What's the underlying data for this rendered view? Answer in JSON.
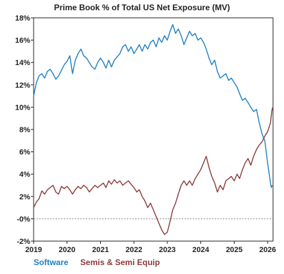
{
  "chart_data": {
    "type": "line",
    "title": "Prime Book % of Total US Net Exposure (MV)",
    "xlabel": "",
    "ylabel": "",
    "x_ticks": [
      "2019",
      "2020",
      "2021",
      "2022",
      "2023",
      "2024",
      "2025",
      "2026"
    ],
    "y_ticks": [
      "18%",
      "16%",
      "14%",
      "12%",
      "10%",
      "8%",
      "6%",
      "4%",
      "2%",
      "-0%",
      "-2%"
    ],
    "xlim": [
      "2019-01-01",
      "2026-03-01"
    ],
    "ylim": [
      -2,
      18
    ],
    "grid": false,
    "reference_line": {
      "y": 0,
      "style": "dashed"
    },
    "legend_position": "bottom-left",
    "series": [
      {
        "name": "Software",
        "color": "#1f7fc1",
        "points": [
          [
            "2019-01-01",
            11.0
          ],
          [
            "2019-02-01",
            12.2
          ],
          [
            "2019-03-01",
            12.8
          ],
          [
            "2019-04-01",
            13.0
          ],
          [
            "2019-05-01",
            12.6
          ],
          [
            "2019-06-01",
            13.2
          ],
          [
            "2019-07-01",
            13.4
          ],
          [
            "2019-08-01",
            13.0
          ],
          [
            "2019-09-01",
            12.5
          ],
          [
            "2019-10-01",
            12.8
          ],
          [
            "2019-11-01",
            13.3
          ],
          [
            "2019-12-01",
            13.8
          ],
          [
            "2020-01-01",
            14.1
          ],
          [
            "2020-02-01",
            14.6
          ],
          [
            "2020-03-01",
            13.0
          ],
          [
            "2020-04-01",
            14.2
          ],
          [
            "2020-05-01",
            14.8
          ],
          [
            "2020-06-01",
            15.2
          ],
          [
            "2020-07-01",
            14.6
          ],
          [
            "2020-08-01",
            14.4
          ],
          [
            "2020-09-01",
            14.0
          ],
          [
            "2020-10-01",
            13.6
          ],
          [
            "2020-11-01",
            13.4
          ],
          [
            "2020-12-01",
            14.0
          ],
          [
            "2021-01-01",
            14.4
          ],
          [
            "2021-02-01",
            14.0
          ],
          [
            "2021-03-01",
            13.5
          ],
          [
            "2021-04-01",
            14.2
          ],
          [
            "2021-05-01",
            13.6
          ],
          [
            "2021-06-01",
            14.2
          ],
          [
            "2021-07-01",
            14.5
          ],
          [
            "2021-08-01",
            14.8
          ],
          [
            "2021-09-01",
            15.4
          ],
          [
            "2021-10-01",
            15.6
          ],
          [
            "2021-11-01",
            15.0
          ],
          [
            "2021-12-01",
            15.4
          ],
          [
            "2022-01-01",
            14.8
          ],
          [
            "2022-02-01",
            15.2
          ],
          [
            "2022-03-01",
            15.6
          ],
          [
            "2022-04-01",
            15.0
          ],
          [
            "2022-05-01",
            15.6
          ],
          [
            "2022-06-01",
            15.2
          ],
          [
            "2022-07-01",
            15.8
          ],
          [
            "2022-08-01",
            16.0
          ],
          [
            "2022-09-01",
            15.4
          ],
          [
            "2022-10-01",
            16.2
          ],
          [
            "2022-11-01",
            15.8
          ],
          [
            "2022-12-01",
            16.4
          ],
          [
            "2023-01-01",
            16.0
          ],
          [
            "2023-02-01",
            16.8
          ],
          [
            "2023-03-01",
            17.4
          ],
          [
            "2023-04-01",
            16.6
          ],
          [
            "2023-05-01",
            17.0
          ],
          [
            "2023-06-01",
            16.4
          ],
          [
            "2023-07-01",
            15.6
          ],
          [
            "2023-08-01",
            16.2
          ],
          [
            "2023-09-01",
            16.8
          ],
          [
            "2023-10-01",
            16.4
          ],
          [
            "2023-11-01",
            16.6
          ],
          [
            "2023-12-01",
            16.0
          ],
          [
            "2024-01-01",
            16.2
          ],
          [
            "2024-02-01",
            15.8
          ],
          [
            "2024-03-01",
            15.2
          ],
          [
            "2024-04-01",
            14.4
          ],
          [
            "2024-05-01",
            13.8
          ],
          [
            "2024-06-01",
            14.2
          ],
          [
            "2024-07-01",
            13.2
          ],
          [
            "2024-08-01",
            12.6
          ],
          [
            "2024-09-01",
            12.8
          ],
          [
            "2024-10-01",
            13.0
          ],
          [
            "2024-11-01",
            12.4
          ],
          [
            "2024-12-01",
            12.6
          ],
          [
            "2025-01-01",
            12.2
          ],
          [
            "2025-02-01",
            11.8
          ],
          [
            "2025-03-01",
            11.2
          ],
          [
            "2025-04-01",
            10.6
          ],
          [
            "2025-05-01",
            10.8
          ],
          [
            "2025-06-01",
            10.4
          ],
          [
            "2025-07-01",
            10.0
          ],
          [
            "2025-08-01",
            9.6
          ],
          [
            "2025-09-01",
            9.8
          ],
          [
            "2025-10-01",
            8.6
          ],
          [
            "2025-11-01",
            7.6
          ],
          [
            "2025-12-01",
            7.0
          ],
          [
            "2026-01-01",
            5.0
          ],
          [
            "2026-01-15",
            4.2
          ],
          [
            "2026-02-01",
            3.2
          ],
          [
            "2026-02-10",
            2.8
          ],
          [
            "2026-02-20",
            3.0
          ]
        ]
      },
      {
        "name": "Semis & Semi Equip",
        "color": "#8b3a3a",
        "points": [
          [
            "2019-01-01",
            1.0
          ],
          [
            "2019-02-01",
            1.5
          ],
          [
            "2019-03-01",
            1.8
          ],
          [
            "2019-04-01",
            2.5
          ],
          [
            "2019-05-01",
            2.2
          ],
          [
            "2019-06-01",
            2.6
          ],
          [
            "2019-07-01",
            2.8
          ],
          [
            "2019-08-01",
            3.0
          ],
          [
            "2019-09-01",
            2.4
          ],
          [
            "2019-10-01",
            2.2
          ],
          [
            "2019-11-01",
            2.9
          ],
          [
            "2019-12-01",
            2.7
          ],
          [
            "2020-01-01",
            2.9
          ],
          [
            "2020-02-01",
            2.6
          ],
          [
            "2020-03-01",
            2.2
          ],
          [
            "2020-04-01",
            2.6
          ],
          [
            "2020-05-01",
            2.9
          ],
          [
            "2020-06-01",
            2.7
          ],
          [
            "2020-07-01",
            3.0
          ],
          [
            "2020-08-01",
            2.8
          ],
          [
            "2020-09-01",
            2.4
          ],
          [
            "2020-10-01",
            2.7
          ],
          [
            "2020-11-01",
            3.0
          ],
          [
            "2020-12-01",
            2.8
          ],
          [
            "2021-01-01",
            3.0
          ],
          [
            "2021-02-01",
            3.2
          ],
          [
            "2021-03-01",
            2.8
          ],
          [
            "2021-04-01",
            3.4
          ],
          [
            "2021-05-01",
            3.1
          ],
          [
            "2021-06-01",
            3.5
          ],
          [
            "2021-07-01",
            3.2
          ],
          [
            "2021-08-01",
            3.4
          ],
          [
            "2021-09-01",
            3.0
          ],
          [
            "2021-10-01",
            3.2
          ],
          [
            "2021-11-01",
            3.4
          ],
          [
            "2021-12-01",
            3.1
          ],
          [
            "2022-01-01",
            2.8
          ],
          [
            "2022-02-01",
            2.4
          ],
          [
            "2022-03-01",
            2.6
          ],
          [
            "2022-04-01",
            2.0
          ],
          [
            "2022-05-01",
            1.6
          ],
          [
            "2022-06-01",
            1.0
          ],
          [
            "2022-07-01",
            1.4
          ],
          [
            "2022-08-01",
            0.8
          ],
          [
            "2022-09-01",
            0.2
          ],
          [
            "2022-10-01",
            -0.4
          ],
          [
            "2022-11-01",
            -1.0
          ],
          [
            "2022-12-01",
            -1.4
          ],
          [
            "2023-01-01",
            -1.2
          ],
          [
            "2023-02-01",
            -0.2
          ],
          [
            "2023-03-01",
            0.8
          ],
          [
            "2023-04-01",
            1.4
          ],
          [
            "2023-05-01",
            2.2
          ],
          [
            "2023-06-01",
            3.0
          ],
          [
            "2023-07-01",
            3.4
          ],
          [
            "2023-08-01",
            3.0
          ],
          [
            "2023-09-01",
            3.4
          ],
          [
            "2023-10-01",
            3.0
          ],
          [
            "2023-11-01",
            3.6
          ],
          [
            "2023-12-01",
            4.0
          ],
          [
            "2024-01-01",
            4.4
          ],
          [
            "2024-02-01",
            5.0
          ],
          [
            "2024-03-01",
            5.6
          ],
          [
            "2024-04-01",
            4.6
          ],
          [
            "2024-05-01",
            3.8
          ],
          [
            "2024-06-01",
            3.2
          ],
          [
            "2024-07-01",
            2.4
          ],
          [
            "2024-08-01",
            3.0
          ],
          [
            "2024-09-01",
            2.6
          ],
          [
            "2024-10-01",
            3.4
          ],
          [
            "2024-11-01",
            3.6
          ],
          [
            "2024-12-01",
            3.8
          ],
          [
            "2025-01-01",
            3.4
          ],
          [
            "2025-02-01",
            4.0
          ],
          [
            "2025-03-01",
            3.6
          ],
          [
            "2025-04-01",
            4.4
          ],
          [
            "2025-05-01",
            5.0
          ],
          [
            "2025-06-01",
            5.4
          ],
          [
            "2025-07-01",
            4.8
          ],
          [
            "2025-08-01",
            5.6
          ],
          [
            "2025-09-01",
            6.2
          ],
          [
            "2025-10-01",
            6.6
          ],
          [
            "2025-11-01",
            6.9
          ],
          [
            "2025-12-01",
            7.4
          ],
          [
            "2026-01-01",
            7.8
          ],
          [
            "2026-02-01",
            8.6
          ],
          [
            "2026-02-15",
            9.6
          ],
          [
            "2026-02-25",
            10.0
          ]
        ]
      }
    ]
  }
}
